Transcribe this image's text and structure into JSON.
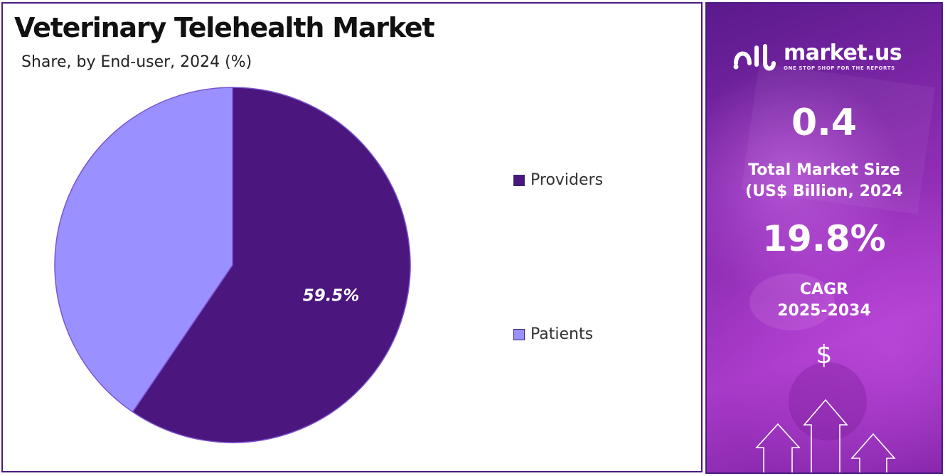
{
  "chart_data": {
    "type": "pie",
    "title": "Veterinary Telehealth Market",
    "subtitle": "Share, by End-user, 2024 (%)",
    "categories": [
      "Providers",
      "Patients"
    ],
    "values": [
      59.5,
      40.5
    ],
    "data_labels": [
      "59.5%",
      ""
    ],
    "colors": [
      "#4b167e",
      "#9b90ff"
    ],
    "legend_position": "right"
  },
  "sidebar": {
    "brand_name": "market.us",
    "brand_tagline": "ONE STOP SHOP FOR THE REPORTS",
    "market_size_value": "0.4",
    "market_size_label_line1": "Total Market Size",
    "market_size_label_line2": "(US$ Billion, 2024",
    "cagr_value": "19.8%",
    "cagr_label_line1": "CAGR",
    "cagr_label_line2": "2025-2034",
    "currency_symbol": "$"
  }
}
